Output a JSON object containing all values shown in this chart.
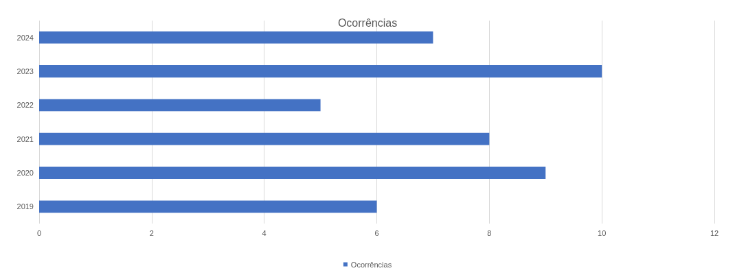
{
  "chart_data": {
    "type": "bar",
    "title": "Ocorrências",
    "orientation": "horizontal",
    "categories": [
      "2024",
      "2023",
      "2022",
      "2021",
      "2020",
      "2019"
    ],
    "series": [
      {
        "name": "Ocorrências",
        "color": "#4472c4",
        "values": [
          7,
          10,
          5,
          8,
          9,
          6
        ]
      }
    ],
    "xlim": [
      0,
      12
    ],
    "xticks": [
      0,
      2,
      4,
      6,
      8,
      10,
      12
    ],
    "grid": "x",
    "legend": "bottom"
  }
}
